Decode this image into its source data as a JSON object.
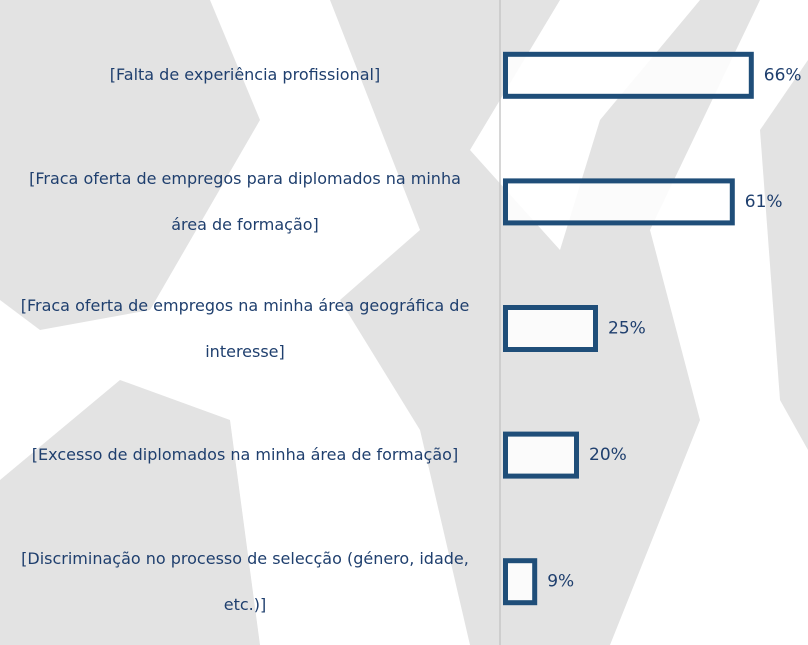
{
  "chart_data": {
    "type": "bar",
    "orientation": "horizontal",
    "categories": [
      "[Falta de experiência profissional]",
      "[Fraca oferta de empregos para diplomados na minha área de formação]",
      "[Fraca oferta de empregos na minha área geográfica de interesse]",
      "[Excesso de diplomados na minha área de formação]",
      "[Discriminação no processo de selecção (género, idade, etc.)]"
    ],
    "values": [
      66,
      61,
      25,
      20,
      9
    ],
    "value_labels": [
      "66%",
      "61%",
      "25%",
      "20%",
      "9%"
    ],
    "color": "#1f4e79",
    "xlim": [
      0,
      100
    ]
  }
}
